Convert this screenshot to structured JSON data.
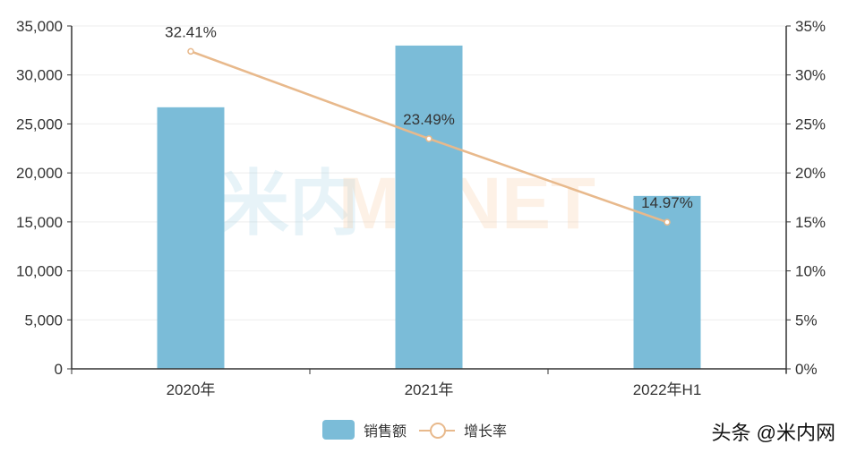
{
  "chart_data": {
    "type": "bar+line",
    "categories": [
      "2020年",
      "2021年",
      "2022年H1"
    ],
    "series": [
      {
        "name": "销售额",
        "type": "bar",
        "axis": "left",
        "values": [
          26700,
          33000,
          17650
        ],
        "color": "#7bbcd8"
      },
      {
        "name": "增长率",
        "type": "line",
        "axis": "right",
        "values": [
          32.41,
          23.49,
          14.97
        ],
        "labels": [
          "32.41%",
          "23.49%",
          "14.97%"
        ],
        "color": "#e8b98c"
      }
    ],
    "left_axis": {
      "ticks": [
        "0",
        "5,000",
        "10,000",
        "15,000",
        "20,000",
        "25,000",
        "30,000",
        "35,000"
      ],
      "ylim": [
        0,
        35000
      ]
    },
    "right_axis": {
      "ticks": [
        "0%",
        "5%",
        "10%",
        "15%",
        "20%",
        "25%",
        "30%",
        "35%"
      ],
      "ylim": [
        0,
        35
      ]
    },
    "grid": true,
    "legend_position": "bottom"
  },
  "legend": {
    "bar_label": "销售额",
    "line_label": "增长率"
  },
  "watermark": {
    "cn": "米内",
    "en": "MENET"
  },
  "credit": "头条 @米内网"
}
